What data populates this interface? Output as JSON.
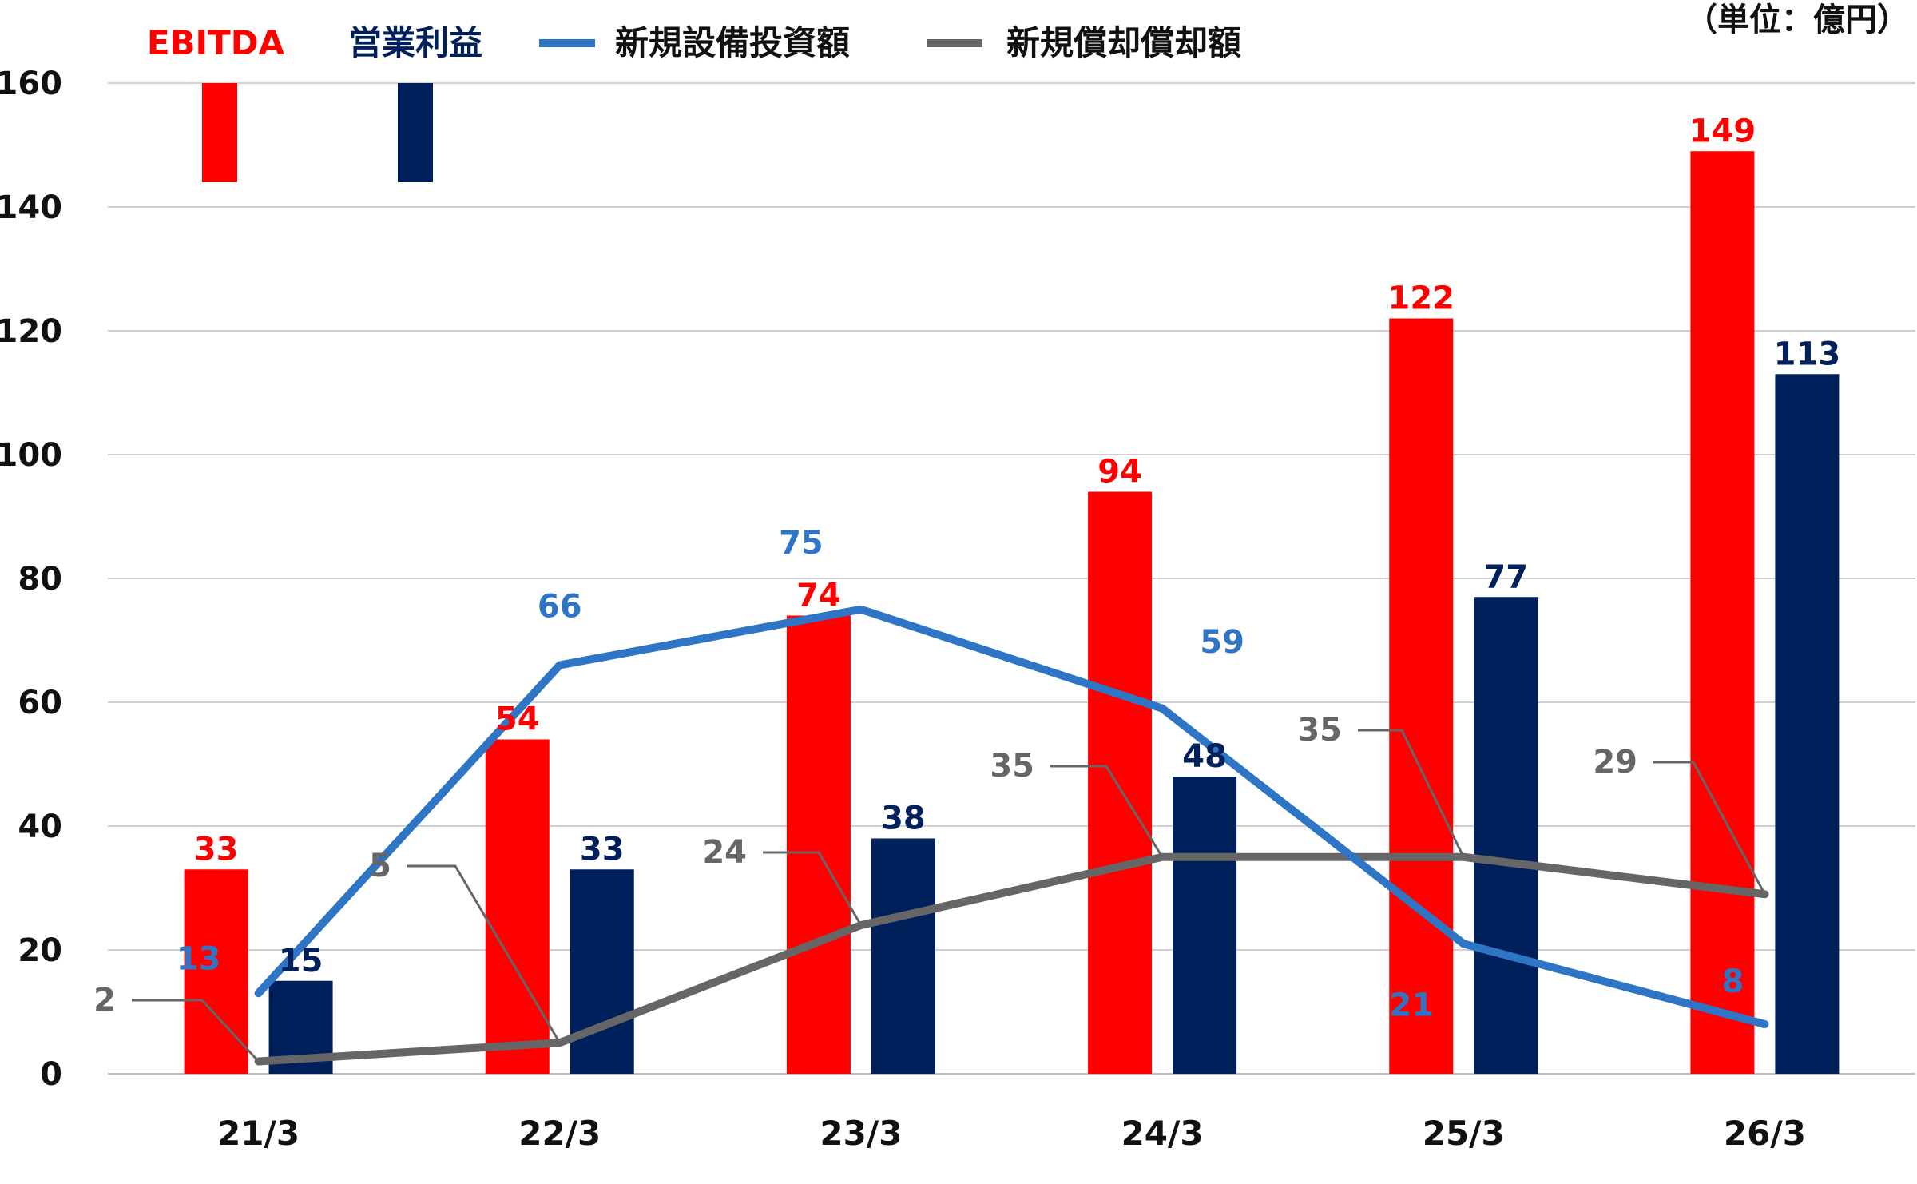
{
  "chart_data": {
    "type": "bar",
    "unit_note": "（単位：億円）",
    "categories": [
      "21/3",
      "22/3",
      "23/3",
      "24/3",
      "25/3",
      "26/3"
    ],
    "ylim": [
      0,
      160
    ],
    "yticks": [
      "0",
      "20",
      "40",
      "60",
      "80",
      "100",
      "120",
      "140",
      "160"
    ],
    "grid": true,
    "legend_position": "top-left",
    "series": [
      {
        "name": "EBITDA",
        "type": "bar",
        "color": "#ff0000",
        "values": [
          33,
          54,
          74,
          94,
          122,
          149
        ]
      },
      {
        "name": "営業利益",
        "type": "bar",
        "color": "#00205b",
        "values": [
          15,
          33,
          38,
          48,
          77,
          113
        ]
      },
      {
        "name": "新規設備投資額",
        "type": "line",
        "color": "#2e75c6",
        "values": [
          13,
          66,
          75,
          59,
          21,
          8
        ]
      },
      {
        "name": "新規償却償却額",
        "type": "line",
        "color": "#666666",
        "values": [
          2,
          5,
          24,
          35,
          35,
          29
        ]
      }
    ]
  }
}
